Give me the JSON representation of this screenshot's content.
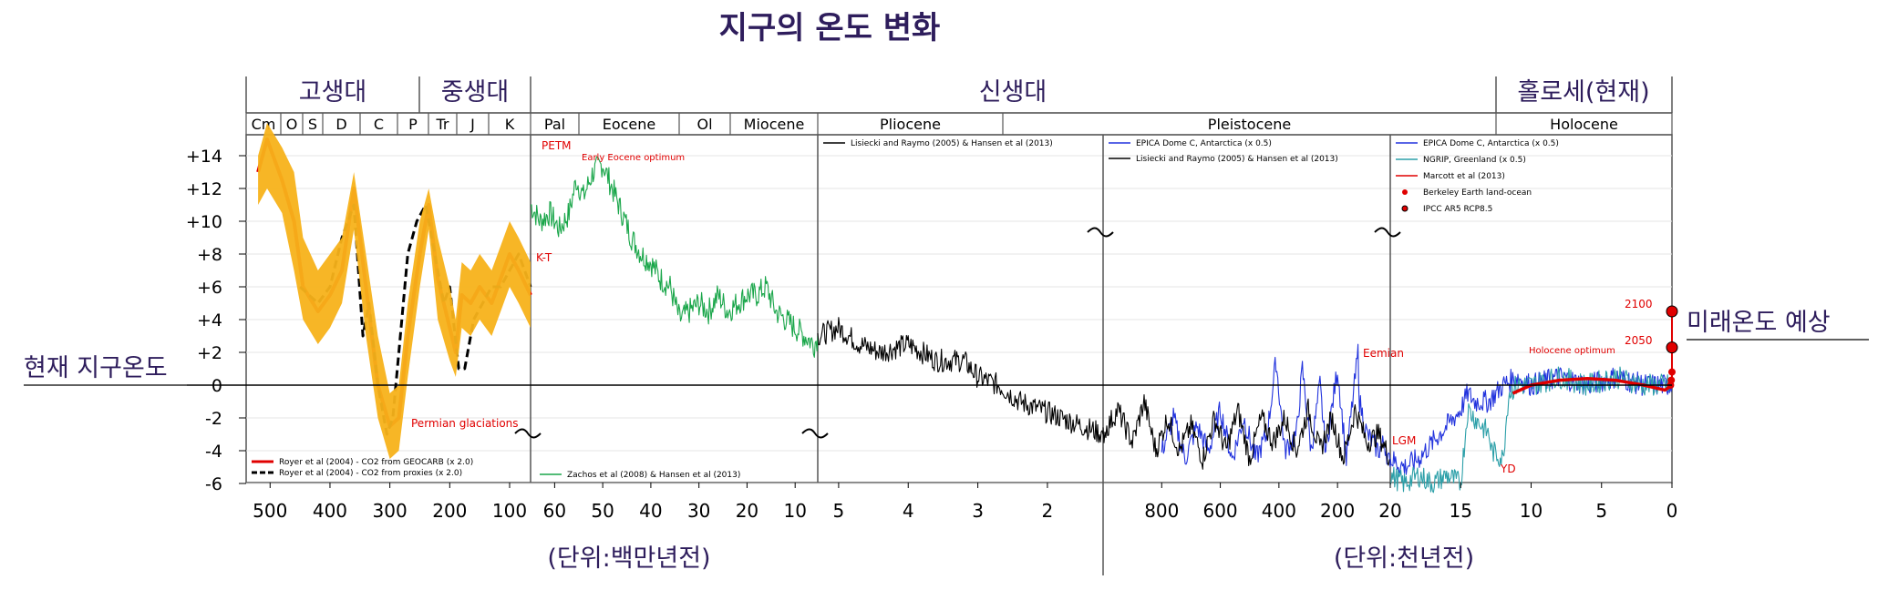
{
  "chart_data": {
    "type": "line",
    "title": "지구의 온도 변화",
    "eras": [
      {
        "label": "고생대"
      },
      {
        "label": "중생대"
      },
      {
        "label": "신생대"
      },
      {
        "label": "홀로세(현재)"
      }
    ],
    "periods": [
      "Cm",
      "O",
      "S",
      "D",
      "C",
      "P",
      "Tr",
      "J",
      "K",
      "Pal",
      "Eocene",
      "Ol",
      "Miocene",
      "Pliocene",
      "Pleistocene",
      "Holocene"
    ],
    "y_ticks": [
      "+14",
      "+12",
      "+10",
      "+8",
      "+6",
      "+4",
      "+2",
      "0",
      "-2",
      "-4",
      "-6"
    ],
    "ylim": [
      -6,
      15
    ],
    "panels": [
      {
        "id": "paleozoic-mesozoic",
        "x_ticks": [
          "500",
          "400",
          "300",
          "200",
          "100"
        ],
        "xlim": [
          540,
          65
        ],
        "legend": [
          "Royer et al (2004) - CO2 from GEOCARB (x 2.0)",
          "Royer et al (2004) - CO2 from proxies (x 2.0)"
        ],
        "series": [
          {
            "name": "Royer et al (2004) - CO2 from GEOCARB (x 2.0)",
            "color": "#e00000",
            "x": [
              520,
              505,
              480,
              460,
              445,
              420,
              400,
              380,
              360,
              340,
              320,
              300,
              285,
              270,
              250,
              235,
              220,
              200,
              190,
              180,
              165,
              150,
              130,
              115,
              100,
              85,
              65
            ],
            "y": [
              13,
              15,
              12.5,
              10,
              6,
              4.5,
              5.5,
              7,
              12,
              6,
              0,
              -2.5,
              -2,
              3,
              8,
              11,
              6.5,
              3.5,
              2,
              5.5,
              5,
              6,
              5,
              6.5,
              8,
              7,
              5.5
            ]
          },
          {
            "name": "Royer et al (2004) - CO2 from proxies (x 2.0)",
            "color": "#000000",
            "x": [
              450,
              420,
              400,
              380,
              360,
              345,
              335,
              320,
              305,
              295,
              285,
              270,
              255,
              240,
              225,
              210,
              200,
              185,
              175,
              160,
              145,
              130,
              115,
              100,
              85,
              65
            ],
            "y": [
              6,
              5,
              6,
              9,
              11,
              3,
              5,
              0,
              -3,
              -2,
              2,
              8,
              10,
              11,
              8,
              5,
              6,
              1,
              1,
              4,
              5,
              6,
              6,
              7,
              8,
              6
            ]
          },
          {
            "name": "uncertainty band",
            "color": "#f7b21a",
            "x": [
              520,
              505,
              480,
              460,
              445,
              420,
              400,
              380,
              360,
              340,
              320,
              300,
              285,
              270,
              250,
              235,
              220,
              200,
              190,
              180,
              165,
              150,
              130,
              115,
              100,
              85,
              65
            ],
            "y_low": [
              11,
              12,
              10.5,
              7,
              4,
              2.5,
              3.5,
              5,
              9.5,
              3,
              -2,
              -4.5,
              -4,
              0.5,
              6,
              9.5,
              4,
              1.5,
              0.5,
              3.5,
              3,
              4,
              3,
              4.5,
              6,
              5,
              3.5
            ],
            "y_high": [
              14,
              16,
              14.5,
              13,
              9,
              7,
              8,
              9,
              13,
              8,
              3,
              -0.5,
              0,
              5,
              10,
              12,
              9,
              6,
              4,
              7.5,
              7,
              8,
              7,
              8.5,
              10,
              9,
              7.5
            ]
          }
        ],
        "annotations": [
          "Permian glaciations"
        ]
      },
      {
        "id": "cenozoic",
        "x_ticks": [
          "60",
          "50",
          "40",
          "30",
          "20",
          "10"
        ],
        "xlim": [
          65,
          5.3
        ],
        "legend": [
          "Zachos et al (2008) & Hansen et al (2013)"
        ],
        "series": [
          {
            "name": "Zachos et al (2008) & Hansen et al (2013)",
            "color": "#1aa64a",
            "x": [
              65,
              63,
              61,
              59,
              57,
              55.5,
              54,
              52,
              50,
              48,
              46,
              44,
              42,
              40,
              38,
              36,
              34,
              32,
              30,
              28,
              26,
              24,
              22,
              20,
              18,
              16,
              14,
              12,
              10,
              8,
              6,
              5.3
            ],
            "y": [
              11,
              10,
              10.5,
              9.5,
              10.5,
              12.5,
              11.5,
              13,
              13.5,
              12,
              10.5,
              9,
              8,
              7.5,
              6.5,
              6,
              4,
              4.5,
              5,
              4.5,
              5.5,
              4.5,
              5,
              5.5,
              5.5,
              6,
              4.5,
              4,
              3.5,
              3,
              2.5,
              3
            ]
          }
        ],
        "annotations": [
          "PETM",
          "Early Eocene optimum",
          "K-T"
        ]
      },
      {
        "id": "pliocene",
        "x_ticks": [
          "5",
          "4",
          "3",
          "2"
        ],
        "xlim": [
          5.3,
          1.2
        ],
        "legend": [
          "Lisiecki and Raymo (2005) & Hansen et al (2013)"
        ],
        "series": [
          {
            "name": "Lisiecki and Raymo (2005) & Hansen et al (2013)",
            "color": "#000000",
            "x": [
              5.3,
              5,
              4.7,
              4.4,
              4,
              3.6,
              3.2,
              3,
              2.7,
              2.4,
              2.1,
              1.8,
              1.5,
              1.2
            ],
            "y": [
              3,
              3.5,
              2.5,
              2,
              2.5,
              1.5,
              1.5,
              0.5,
              0,
              -1,
              -1.5,
              -2,
              -2.5,
              -3
            ]
          }
        ]
      },
      {
        "id": "pleistocene",
        "x_ticks": [
          "800",
          "600",
          "400",
          "200",
          "20"
        ],
        "xlim": [
          1000,
          20
        ],
        "legend": [
          "EPICA Dome C, Antarctica (x 0.5)",
          "Lisiecki and Raymo (2005) & Hansen et al (2013)"
        ],
        "series": [
          {
            "name": "EPICA Dome C, Antarctica (x 0.5)",
            "color": "#2233dd",
            "x": [
              800,
              760,
              720,
              680,
              640,
              600,
              560,
              520,
              480,
              440,
              410,
              380,
              340,
              320,
              290,
              260,
              240,
              200,
              170,
              130,
              125,
              100,
              60,
              40,
              20
            ],
            "y": [
              -4,
              -2,
              -4.5,
              -2.5,
              -4,
              -1.5,
              -4.5,
              -2,
              -4.5,
              -3,
              1.5,
              -4,
              -3,
              1,
              -4,
              0,
              -4,
              1,
              -4.5,
              2,
              -1,
              -3,
              -4,
              -3.5,
              -5
            ]
          },
          {
            "name": "Lisiecki and Raymo (2005) & Hansen et al (2013)",
            "color": "#000000",
            "x": [
              1000,
              950,
              900,
              860,
              820,
              780,
              740,
              700,
              660,
              620,
              580,
              540,
              500,
              460,
              420,
              380,
              340,
              300,
              260,
              220,
              180,
              140,
              100,
              60,
              20
            ],
            "y": [
              -3,
              -1.5,
              -3.5,
              -1,
              -4,
              -2,
              -4,
              -2.5,
              -4.5,
              -2,
              -4,
              -1.5,
              -4.5,
              -2,
              -3.5,
              -2,
              -4,
              -1.5,
              -4,
              -2,
              -4.5,
              -1.5,
              -3.5,
              -3,
              -4.5
            ]
          }
        ],
        "annotations": [
          "Eemian",
          "LGM"
        ]
      },
      {
        "id": "holocene",
        "x_ticks": [
          "20",
          "15",
          "10",
          "5",
          "0"
        ],
        "xlim": [
          20,
          0
        ],
        "legend": [
          "EPICA Dome C, Antarctica (x 0.5)",
          "NGRIP, Greenland (x 0.5)",
          "Marcott et al (2013)",
          "Berkeley Earth land-ocean",
          "IPCC AR5 RCP8.5"
        ],
        "series": [
          {
            "name": "EPICA Dome C, Antarctica (x 0.5)",
            "color": "#2233dd",
            "x": [
              20,
              19,
              18,
              17,
              16,
              15,
              14.5,
              14,
              13,
              12,
              11,
              10,
              8,
              6,
              4,
              2,
              0
            ],
            "y": [
              -4.5,
              -5,
              -4.5,
              -3.5,
              -2.5,
              -1.5,
              -0.5,
              -1,
              -1,
              0,
              0.5,
              0,
              0.5,
              0,
              0.5,
              0,
              0
            ]
          },
          {
            "name": "NGRIP, Greenland (x 0.5)",
            "color": "#2b9fa8",
            "x": [
              20,
              19,
              18,
              17,
              16,
              15,
              14.5,
              14,
              13,
              12.8,
              12,
              11.6,
              11,
              10,
              8,
              6,
              4,
              2,
              0
            ],
            "y": [
              -5.5,
              -6,
              -5.5,
              -6,
              -5.5,
              -6,
              -1.5,
              -2,
              -3,
              -4,
              -4.5,
              -0.5,
              0,
              0,
              0.5,
              0,
              0.5,
              0,
              0
            ]
          },
          {
            "name": "Marcott et al (2013)",
            "color": "#e00000",
            "x": [
              11.3,
              10,
              8,
              6,
              4,
              2,
              0.5,
              0
            ],
            "y": [
              -0.5,
              0,
              0.3,
              0.4,
              0.3,
              0,
              -0.3,
              0
            ]
          },
          {
            "name": "Berkeley Earth land-ocean",
            "color": "#e00000",
            "x": [
              0.1,
              0.05,
              0
            ],
            "y": [
              0,
              0.3,
              0.8
            ]
          },
          {
            "name": "IPCC AR5 RCP8.5",
            "color": "#e00000",
            "x": [
              0,
              0
            ],
            "y": [
              2.3,
              4.5
            ]
          }
        ],
        "annotations": [
          "Holocene optimum",
          "YD",
          "2050",
          "2100"
        ]
      }
    ]
  },
  "labels": {
    "current_temp": "현재 지구온도",
    "future_temp": "미래온도 예상",
    "unit_million": "(단위:백만년전)",
    "unit_thousand": "(단위:천년전)"
  }
}
